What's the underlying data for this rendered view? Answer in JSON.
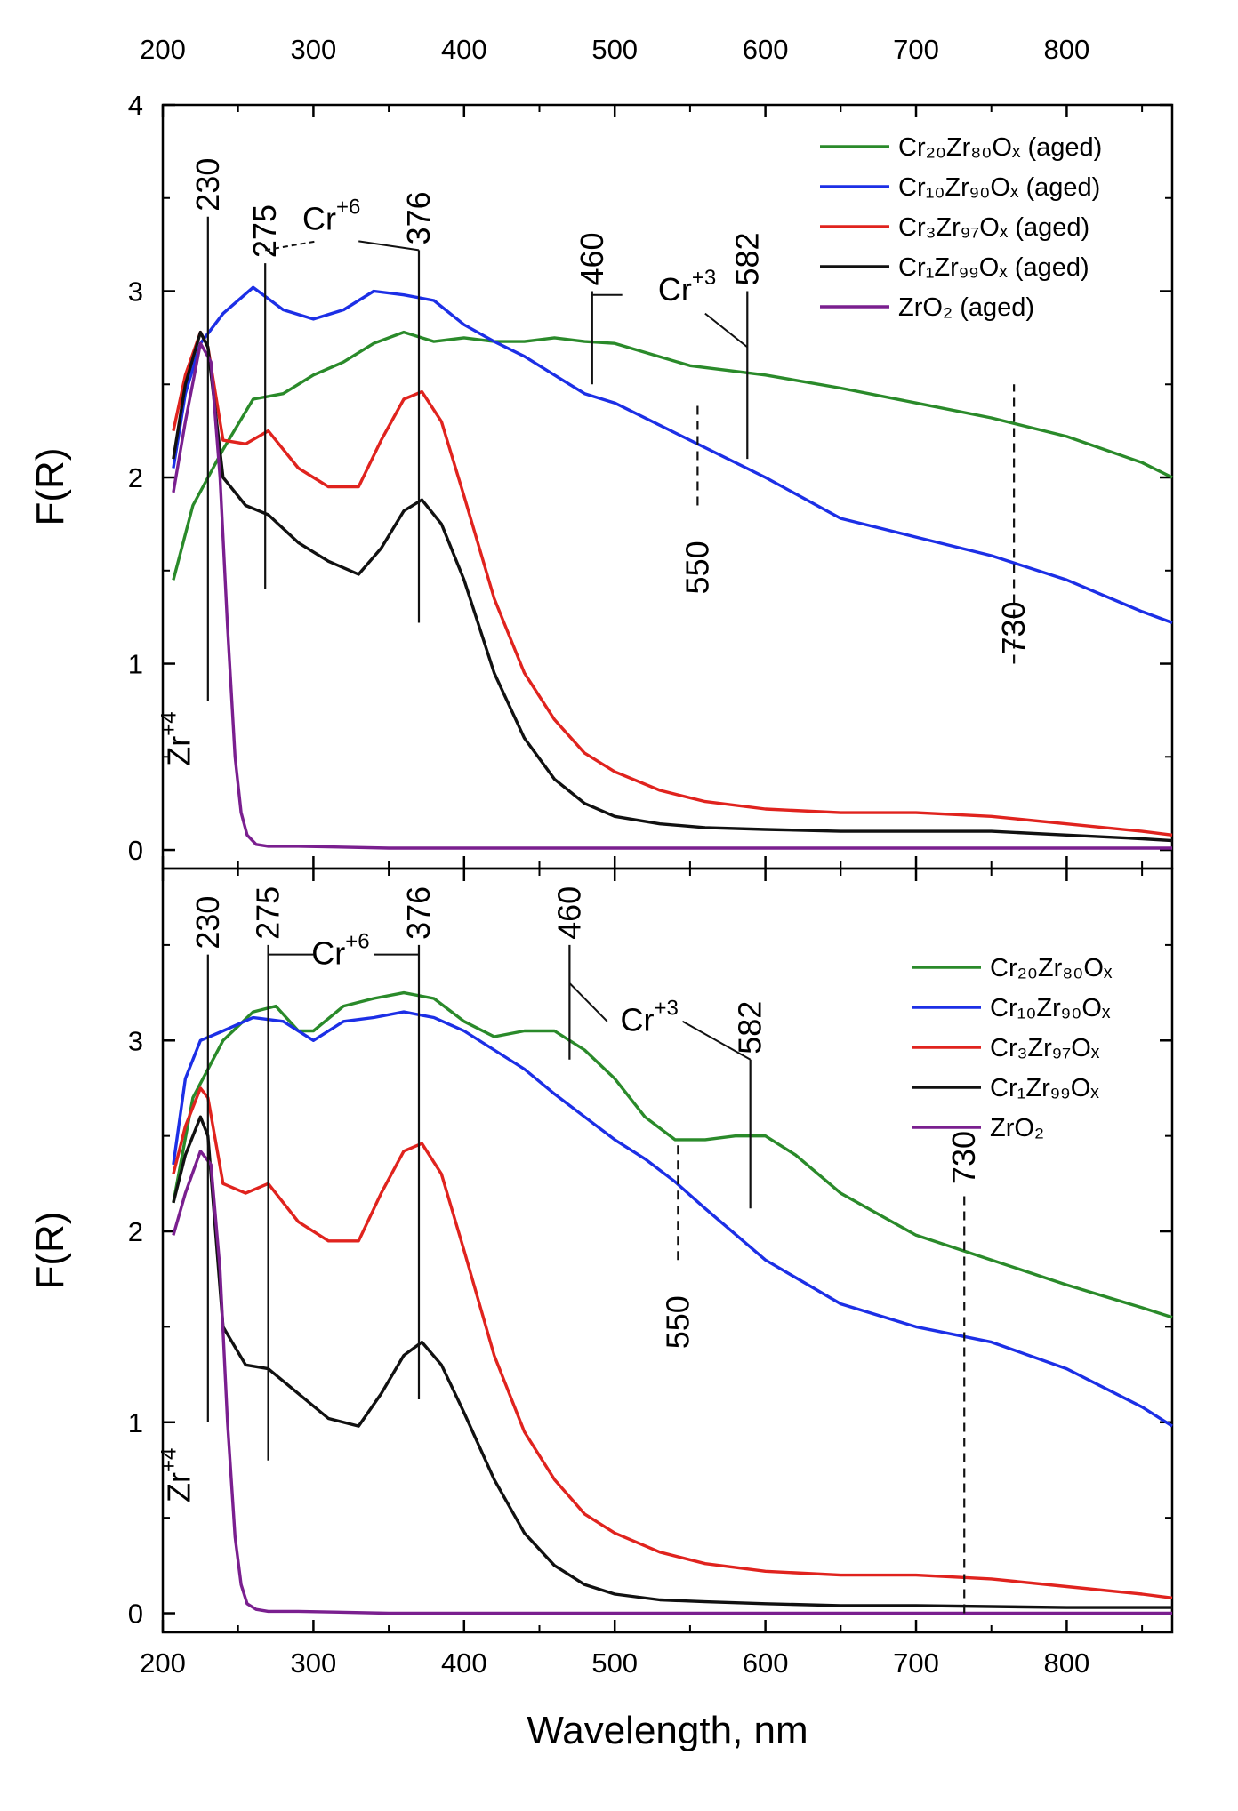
{
  "colors": {
    "green": "#2a8a2a",
    "blue": "#1c2fe6",
    "red": "#e0231e",
    "black": "#111111",
    "purple": "#7a1f8f",
    "orange": "#f0902a",
    "annotation_green": "#2e8b2e"
  },
  "chart_data": [
    {
      "type": "line",
      "panel": "top",
      "xlabel": "",
      "ylabel": "F(R)",
      "xlim": [
        200,
        870
      ],
      "ylim": [
        -0.1,
        4.0
      ],
      "x_ticks": [
        "200",
        "300",
        "400",
        "500",
        "600",
        "700",
        "800"
      ],
      "y_ticks": [
        "0",
        "1",
        "2",
        "3",
        "4"
      ],
      "top_x_ticks": [
        "200",
        "300",
        "400",
        "500",
        "600",
        "700",
        "800"
      ],
      "legend": [
        "Cr₂₀Zr₈₀Oₓ (aged)",
        "Cr₁₀Zr₉₀Oₓ (aged)",
        "Cr₃Zr₉₇Oₓ (aged)",
        "Cr₁Zr₉₉Oₓ (aged)",
        "ZrO₂ (aged)"
      ],
      "series": [
        {
          "name": "Cr₂₀Zr₈₀Oₓ (aged)",
          "color": "#2a8a2a",
          "x": [
            207,
            220,
            240,
            260,
            280,
            300,
            320,
            340,
            360,
            380,
            400,
            420,
            440,
            460,
            480,
            500,
            550,
            600,
            650,
            700,
            750,
            800,
            850,
            870
          ],
          "y": [
            1.45,
            1.85,
            2.15,
            2.42,
            2.45,
            2.55,
            2.62,
            2.72,
            2.78,
            2.73,
            2.75,
            2.73,
            2.73,
            2.75,
            2.73,
            2.72,
            2.6,
            2.55,
            2.48,
            2.4,
            2.32,
            2.22,
            2.08,
            2.0
          ]
        },
        {
          "name": "Cr₁₀Zr₉₀Oₓ (aged)",
          "color": "#1c2fe6",
          "x": [
            207,
            215,
            225,
            240,
            260,
            280,
            300,
            320,
            340,
            360,
            380,
            400,
            420,
            440,
            460,
            480,
            500,
            550,
            600,
            650,
            700,
            750,
            800,
            850,
            870
          ],
          "y": [
            2.05,
            2.45,
            2.72,
            2.88,
            3.02,
            2.9,
            2.85,
            2.9,
            3.0,
            2.98,
            2.95,
            2.82,
            2.73,
            2.65,
            2.55,
            2.45,
            2.4,
            2.2,
            2.0,
            1.78,
            1.68,
            1.58,
            1.45,
            1.28,
            1.22
          ]
        },
        {
          "name": "Cr₃Zr₉₇Oₓ (aged)",
          "color": "#e0231e",
          "x": [
            207,
            215,
            225,
            230,
            240,
            255,
            270,
            290,
            310,
            330,
            345,
            360,
            372,
            385,
            400,
            420,
            440,
            460,
            480,
            500,
            530,
            560,
            600,
            650,
            700,
            750,
            800,
            850,
            870
          ],
          "y": [
            2.25,
            2.55,
            2.78,
            2.7,
            2.2,
            2.18,
            2.25,
            2.05,
            1.95,
            1.95,
            2.2,
            2.42,
            2.46,
            2.3,
            1.9,
            1.35,
            0.95,
            0.7,
            0.52,
            0.42,
            0.32,
            0.26,
            0.22,
            0.2,
            0.2,
            0.18,
            0.14,
            0.1,
            0.08
          ]
        },
        {
          "name": "Cr₁Zr₉₉Oₓ (aged)",
          "color": "#111111",
          "x": [
            207,
            215,
            225,
            230,
            240,
            255,
            270,
            290,
            310,
            330,
            345,
            360,
            372,
            385,
            400,
            420,
            440,
            460,
            480,
            500,
            530,
            560,
            600,
            650,
            700,
            750,
            800,
            850,
            870
          ],
          "y": [
            2.1,
            2.5,
            2.78,
            2.7,
            2.0,
            1.85,
            1.8,
            1.65,
            1.55,
            1.48,
            1.62,
            1.82,
            1.88,
            1.75,
            1.45,
            0.95,
            0.6,
            0.38,
            0.25,
            0.18,
            0.14,
            0.12,
            0.11,
            0.1,
            0.1,
            0.1,
            0.08,
            0.06,
            0.05
          ]
        },
        {
          "name": "ZrO₂ (aged)",
          "color": "#7a1f8f",
          "x": [
            207,
            215,
            225,
            232,
            238,
            243,
            248,
            252,
            256,
            262,
            270,
            290,
            350,
            500,
            700,
            870
          ],
          "y": [
            1.92,
            2.3,
            2.72,
            2.62,
            2.0,
            1.2,
            0.5,
            0.2,
            0.08,
            0.03,
            0.02,
            0.02,
            0.01,
            0.01,
            0.01,
            0.01
          ]
        }
      ],
      "annotations": {
        "zr_label": "Zr",
        "zr_sup": "+4",
        "lines": [
          {
            "label": "230",
            "x": 230,
            "color": "#111111",
            "dashed": false,
            "y_from": 0.8,
            "y_to": 3.4
          },
          {
            "label": "275",
            "x": 268,
            "color": "#f0902a",
            "dashed": false,
            "y_from": 1.4,
            "y_to": 3.15
          },
          {
            "label": "376",
            "x": 370,
            "color": "#f0902a",
            "dashed": false,
            "y_from": 1.22,
            "y_to": 3.22
          },
          {
            "label": "460",
            "x": 485,
            "color": "#2e8b2e",
            "dashed": false,
            "y_from": 2.5,
            "y_to": 3.0
          },
          {
            "label": "582",
            "x": 588,
            "color": "#2e8b2e",
            "dashed": false,
            "y_from": 2.1,
            "y_to": 3.0
          },
          {
            "label": "550",
            "x": 555,
            "color": "#111111",
            "dashed": true,
            "y_from": 1.85,
            "y_to": 2.4
          },
          {
            "label": "730",
            "x": 765,
            "color": "#111111",
            "dashed": true,
            "y_from": 1.0,
            "y_to": 2.5
          }
        ],
        "cr6_label": "Cr",
        "cr6_sup": "+6",
        "cr3_label": "Cr",
        "cr3_sup": "+3"
      }
    },
    {
      "type": "line",
      "panel": "bottom",
      "xlabel": "Wavelength, nm",
      "ylabel": "F(R)",
      "xlim": [
        200,
        870
      ],
      "ylim": [
        -0.1,
        3.9
      ],
      "x_ticks": [
        "200",
        "300",
        "400",
        "500",
        "600",
        "700",
        "800"
      ],
      "y_ticks": [
        "0",
        "1",
        "2",
        "3"
      ],
      "legend": [
        "Cr₂₀Zr₈₀Oₓ",
        "Cr₁₀Zr₉₀Oₓ",
        "Cr₃Zr₉₇Oₓ",
        "Cr₁Zr₉₉Oₓ",
        "ZrO₂"
      ],
      "series": [
        {
          "name": "Cr₂₀Zr₈₀Oₓ",
          "color": "#2a8a2a",
          "x": [
            207,
            220,
            240,
            260,
            275,
            290,
            300,
            320,
            340,
            360,
            380,
            400,
            420,
            440,
            460,
            480,
            500,
            520,
            540,
            560,
            580,
            600,
            620,
            650,
            700,
            750,
            800,
            850,
            870
          ],
          "y": [
            2.15,
            2.7,
            3.0,
            3.15,
            3.18,
            3.05,
            3.05,
            3.18,
            3.22,
            3.25,
            3.22,
            3.1,
            3.02,
            3.05,
            3.05,
            2.95,
            2.8,
            2.6,
            2.48,
            2.48,
            2.5,
            2.5,
            2.4,
            2.2,
            1.98,
            1.85,
            1.72,
            1.6,
            1.55
          ]
        },
        {
          "name": "Cr₁₀Zr₉₀Oₓ",
          "color": "#1c2fe6",
          "x": [
            207,
            215,
            225,
            240,
            260,
            280,
            300,
            320,
            340,
            360,
            380,
            400,
            420,
            440,
            460,
            480,
            500,
            520,
            540,
            560,
            600,
            650,
            700,
            750,
            800,
            850,
            870
          ],
          "y": [
            2.35,
            2.8,
            3.0,
            3.05,
            3.12,
            3.1,
            3.0,
            3.1,
            3.12,
            3.15,
            3.12,
            3.05,
            2.95,
            2.85,
            2.72,
            2.6,
            2.48,
            2.38,
            2.26,
            2.12,
            1.85,
            1.62,
            1.5,
            1.42,
            1.28,
            1.08,
            0.98
          ]
        },
        {
          "name": "Cr₃Zr₉₇Oₓ",
          "color": "#e0231e",
          "x": [
            207,
            215,
            225,
            230,
            240,
            255,
            270,
            290,
            310,
            330,
            345,
            360,
            372,
            385,
            400,
            420,
            440,
            460,
            480,
            500,
            530,
            560,
            600,
            650,
            700,
            750,
            800,
            850,
            870
          ],
          "y": [
            2.3,
            2.55,
            2.75,
            2.7,
            2.25,
            2.2,
            2.25,
            2.05,
            1.95,
            1.95,
            2.2,
            2.42,
            2.46,
            2.3,
            1.9,
            1.35,
            0.95,
            0.7,
            0.52,
            0.42,
            0.32,
            0.26,
            0.22,
            0.2,
            0.2,
            0.18,
            0.14,
            0.1,
            0.08
          ]
        },
        {
          "name": "Cr₁Zr₉₉Oₓ",
          "color": "#111111",
          "x": [
            207,
            215,
            225,
            230,
            240,
            255,
            270,
            290,
            310,
            330,
            345,
            360,
            372,
            385,
            400,
            420,
            440,
            460,
            480,
            500,
            530,
            560,
            600,
            650,
            700,
            800,
            870
          ],
          "y": [
            2.15,
            2.4,
            2.6,
            2.5,
            1.5,
            1.3,
            1.28,
            1.15,
            1.02,
            0.98,
            1.15,
            1.35,
            1.42,
            1.3,
            1.05,
            0.7,
            0.42,
            0.25,
            0.15,
            0.1,
            0.07,
            0.06,
            0.05,
            0.04,
            0.04,
            0.03,
            0.03
          ]
        },
        {
          "name": "ZrO₂",
          "color": "#7a1f8f",
          "x": [
            207,
            215,
            225,
            232,
            238,
            243,
            248,
            252,
            256,
            262,
            270,
            290,
            350,
            500,
            700,
            870
          ],
          "y": [
            1.98,
            2.2,
            2.42,
            2.35,
            1.8,
            1.0,
            0.4,
            0.15,
            0.05,
            0.02,
            0.01,
            0.01,
            0.0,
            0.0,
            0.0,
            0.0
          ]
        }
      ],
      "annotations": {
        "zr_label": "Zr",
        "zr_sup": "+4",
        "lines": [
          {
            "label": "230",
            "x": 230,
            "color": "#111111",
            "dashed": false,
            "y_from": 1.0,
            "y_to": 3.45
          },
          {
            "label": "275",
            "x": 270,
            "color": "#f0902a",
            "dashed": false,
            "y_from": 0.8,
            "y_to": 3.5
          },
          {
            "label": "376",
            "x": 370,
            "color": "#f0902a",
            "dashed": false,
            "y_from": 1.12,
            "y_to": 3.5
          },
          {
            "label": "460",
            "x": 470,
            "color": "#2e8b2e",
            "dashed": false,
            "y_from": 2.9,
            "y_to": 3.5
          },
          {
            "label": "582",
            "x": 590,
            "color": "#2e8b2e",
            "dashed": false,
            "y_from": 2.12,
            "y_to": 2.9
          },
          {
            "label": "550",
            "x": 542,
            "color": "#111111",
            "dashed": true,
            "y_from": 1.85,
            "y_to": 2.48
          },
          {
            "label": "730",
            "x": 732,
            "color": "#111111",
            "dashed": true,
            "y_from": 0.0,
            "y_to": 2.2
          }
        ],
        "cr6_label": "Cr",
        "cr6_sup": "+6",
        "cr3_label": "Cr",
        "cr3_sup": "+3"
      }
    }
  ]
}
